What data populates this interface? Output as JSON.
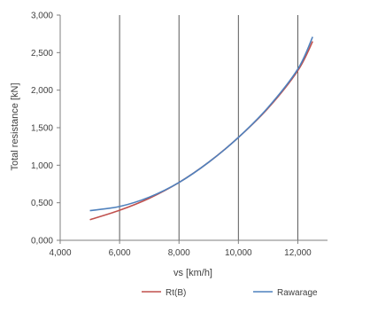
{
  "chart_data": {
    "type": "line",
    "title": "",
    "xlabel": "vs [km/h]",
    "ylabel": "Total resistance [kN]",
    "xlim": [
      4000,
      13000
    ],
    "ylim": [
      0,
      3000
    ],
    "x_ticks": [
      4000,
      6000,
      8000,
      10000,
      12000
    ],
    "x_tick_labels": [
      "4,000",
      "6,000",
      "8,000",
      "10,000",
      "12,000"
    ],
    "y_ticks": [
      0,
      500,
      1000,
      1500,
      2000,
      2500,
      3000
    ],
    "y_tick_labels": [
      "0,000",
      "0,500",
      "1,000",
      "1,500",
      "2,000",
      "2,500",
      "3,000"
    ],
    "grid": {
      "vertical": true,
      "horizontal": false
    },
    "legend_position": "bottom-right",
    "series": [
      {
        "name": "Rt(B)",
        "color": "#c0504d",
        "points": [
          [
            5000,
            275
          ],
          [
            6000,
            400
          ],
          [
            7000,
            560
          ],
          [
            8000,
            770
          ],
          [
            9000,
            1040
          ],
          [
            10000,
            1370
          ],
          [
            11000,
            1760
          ],
          [
            12000,
            2260
          ],
          [
            12500,
            2650
          ]
        ]
      },
      {
        "name": "Rawarage",
        "color": "#4f81bd",
        "points": [
          [
            5000,
            395
          ],
          [
            6000,
            450
          ],
          [
            7000,
            575
          ],
          [
            8000,
            770
          ],
          [
            9000,
            1040
          ],
          [
            10000,
            1370
          ],
          [
            11000,
            1770
          ],
          [
            12000,
            2280
          ],
          [
            12500,
            2710
          ]
        ]
      }
    ]
  }
}
